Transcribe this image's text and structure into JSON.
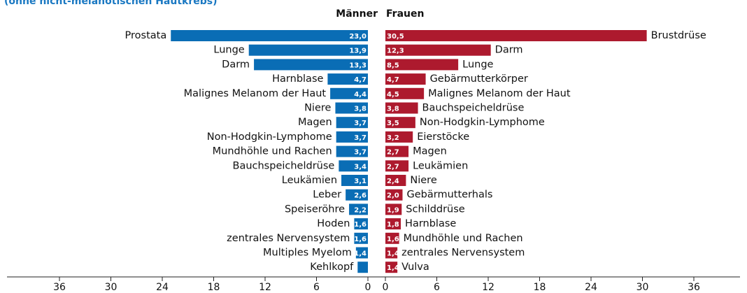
{
  "chart_data": {
    "type": "butterfly",
    "subtitle": "(ohne nicht-melanotischen Hautkrebs)",
    "xlim": [
      0,
      36
    ],
    "xticks": [
      0,
      6,
      12,
      18,
      24,
      30,
      36
    ],
    "series": [
      {
        "name": "Männer",
        "color": "#0a6db5",
        "categories": [
          "Prostata",
          "Lunge",
          "Darm",
          "Harnblase",
          "Malignes Melanom der Haut",
          "Niere",
          "Magen",
          "Non-Hodgkin-Lymphome",
          "Mundhöhle und Rachen",
          "Bauchspeicheldrüse",
          "Leukämien",
          "Leber",
          "Speiseröhre",
          "Hoden",
          "zentrales Nervensystem",
          "Multiples Myelom",
          "Kehlkopf"
        ],
        "values": [
          23.0,
          13.9,
          13.3,
          4.7,
          4.4,
          3.8,
          3.7,
          3.7,
          3.7,
          3.4,
          3.1,
          2.6,
          2.2,
          1.6,
          1.6,
          1.4,
          1.2
        ],
        "value_labels": [
          "23,0",
          "13,9",
          "13,3",
          "4,7",
          "4,4",
          "3,8",
          "3,7",
          "3,7",
          "3,7",
          "3,4",
          "3,1",
          "2,6",
          "2,2",
          "1,6",
          "1,6",
          "1,4",
          null
        ]
      },
      {
        "name": "Frauen",
        "color": "#ad1a2e",
        "categories": [
          "Brustdrüse",
          "Darm",
          "Lunge",
          "Gebärmutterkörper",
          "Malignes Melanom der Haut",
          "Bauchspeicheldrüse",
          "Non-Hodgkin-Lymphome",
          "Eierstöcke",
          "Magen",
          "Leukämien",
          "Niere",
          "Gebärmutterhals",
          "Schilddrüse",
          "Harnblase",
          "Mundhöhle und Rachen",
          "zentrales Nervensystem",
          "Vulva"
        ],
        "values": [
          30.5,
          12.3,
          8.5,
          4.7,
          4.5,
          3.8,
          3.5,
          3.2,
          2.7,
          2.7,
          2.4,
          2.0,
          1.9,
          1.8,
          1.6,
          1.4,
          1.4
        ],
        "value_labels": [
          "30,5",
          "12,3",
          "8,5",
          "4,7",
          "4,5",
          "3,8",
          "3,5",
          "3,2",
          "2,7",
          "2,7",
          "2,4",
          "2,0",
          "1,9",
          "1,8",
          "1,6",
          "1,4",
          "1,4"
        ]
      }
    ]
  }
}
